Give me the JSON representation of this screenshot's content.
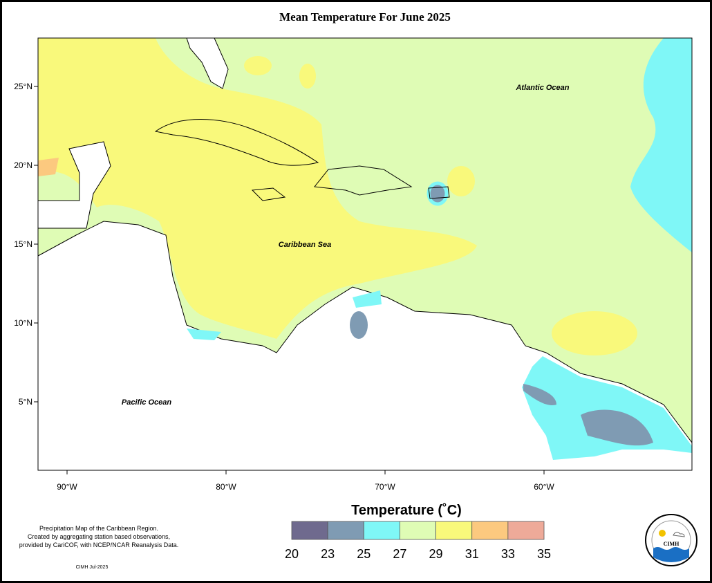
{
  "title": "Mean Temperature For June 2025",
  "lat_labels": [
    "25°N",
    "20°N",
    "15°N",
    "10°N",
    "5°N"
  ],
  "lon_labels": [
    "90°W",
    "80°W",
    "70°W",
    "60°W"
  ],
  "places": [
    "Atlantic Ocean",
    "Caribbean Sea",
    "Pacific Ocean"
  ],
  "legend": {
    "title": "Temperature (˚C)",
    "ticks": [
      20,
      23,
      25,
      27,
      29,
      31,
      33,
      35
    ],
    "colors": [
      "#6f6a8e",
      "#7f9bb3",
      "#7ff7f7",
      "#dffcb5",
      "#f9f97b",
      "#fcc97f",
      "#eeaa99"
    ]
  },
  "note": [
    "Precipitation Map of the Caribbean Region.",
    "Created by aggregating station based observations,",
    "provided by CariCOF, with NCEP/NCAR Reanalysis Data."
  ],
  "credit": "CIMH Jul-2025",
  "logo": "CIMH"
}
